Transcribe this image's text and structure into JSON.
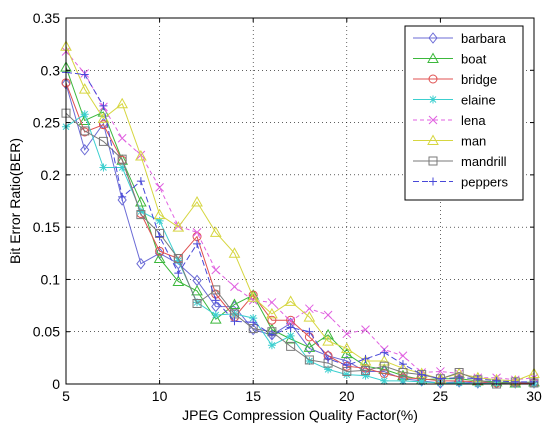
{
  "chart_data": {
    "type": "line",
    "xlabel": "JPEG Compression Quality Factor(%)",
    "ylabel": "Bit Error Ratio(BER)",
    "xlim": [
      5,
      30
    ],
    "ylim": [
      0,
      0.35
    ],
    "x_ticks": [
      "5",
      "10",
      "15",
      "20",
      "25",
      "30"
    ],
    "y_ticks": [
      "0",
      "0.05",
      "0.1",
      "0.15",
      "0.2",
      "0.25",
      "0.3",
      "0.35"
    ],
    "grid": "on",
    "legend_position": "top-right",
    "x": [
      5,
      6,
      7,
      8,
      9,
      10,
      11,
      12,
      13,
      14,
      15,
      16,
      17,
      18,
      19,
      20,
      21,
      22,
      23,
      24,
      25,
      26,
      27,
      28,
      29,
      30
    ],
    "series": [
      {
        "name": "barbara",
        "color": "#6b6bd6",
        "marker": "diamond",
        "values": [
          0.287,
          0.224,
          0.249,
          0.176,
          0.115,
          0.125,
          0.115,
          0.099,
          0.074,
          0.074,
          0.052,
          0.047,
          0.058,
          0.034,
          0.027,
          0.022,
          0.012,
          0.012,
          0.005,
          0.003,
          0.001,
          0.002,
          0.001,
          0.001,
          0.001,
          0.001
        ]
      },
      {
        "name": "boat",
        "color": "#3cb83c",
        "marker": "triangle",
        "values": [
          0.303,
          0.252,
          0.26,
          0.214,
          0.174,
          0.12,
          0.098,
          0.089,
          0.062,
          0.076,
          0.085,
          0.052,
          0.043,
          0.035,
          0.047,
          0.029,
          0.017,
          0.014,
          0.008,
          0.004,
          0.005,
          0.005,
          0.003,
          0.002,
          0.001,
          0.002
        ]
      },
      {
        "name": "bridge",
        "color": "#e05050",
        "marker": "circle",
        "values": [
          0.288,
          0.241,
          0.248,
          0.214,
          0.163,
          0.127,
          0.12,
          0.141,
          0.086,
          0.064,
          0.085,
          0.061,
          0.061,
          0.045,
          0.027,
          0.017,
          0.015,
          0.01,
          0.006,
          0.005,
          0.003,
          0.003,
          0.002,
          0.001,
          0.001,
          0.001
        ]
      },
      {
        "name": "elaine",
        "color": "#3ccfcf",
        "marker": "star",
        "values": [
          0.246,
          0.258,
          0.207,
          0.207,
          0.165,
          0.156,
          0.118,
          0.078,
          0.066,
          0.067,
          0.063,
          0.037,
          0.046,
          0.022,
          0.014,
          0.009,
          0.008,
          0.003,
          0.003,
          0.002,
          0.001,
          0.001,
          0.0,
          0.001,
          0.0,
          0.0
        ]
      },
      {
        "name": "lena",
        "color": "#e060e0",
        "marker": "x",
        "values": [
          0.318,
          0.297,
          0.265,
          0.235,
          0.219,
          0.188,
          0.151,
          0.145,
          0.109,
          0.093,
          0.08,
          0.078,
          0.06,
          0.072,
          0.066,
          0.048,
          0.052,
          0.033,
          0.027,
          0.011,
          0.012,
          0.01,
          0.006,
          0.006,
          0.004,
          0.006
        ]
      },
      {
        "name": "man",
        "color": "#d6d640",
        "marker": "triangle",
        "values": [
          0.323,
          0.282,
          0.254,
          0.268,
          0.218,
          0.162,
          0.15,
          0.174,
          0.145,
          0.125,
          0.083,
          0.067,
          0.079,
          0.064,
          0.041,
          0.034,
          0.022,
          0.022,
          0.015,
          0.01,
          0.005,
          0.01,
          0.006,
          0.004,
          0.003,
          0.01
        ]
      },
      {
        "name": "mandrill",
        "color": "#7a7a7a",
        "marker": "square",
        "values": [
          0.259,
          0.242,
          0.232,
          0.215,
          0.162,
          0.144,
          0.12,
          0.077,
          0.09,
          0.067,
          0.053,
          0.05,
          0.036,
          0.023,
          0.02,
          0.012,
          0.013,
          0.017,
          0.011,
          0.009,
          0.005,
          0.011,
          0.004,
          0.0,
          0.002,
          0.001
        ]
      },
      {
        "name": "peppers",
        "color": "#4848d8",
        "marker": "plus",
        "values": [
          0.298,
          0.296,
          0.266,
          0.179,
          0.194,
          0.141,
          0.106,
          0.134,
          0.08,
          0.06,
          0.059,
          0.047,
          0.054,
          0.05,
          0.024,
          0.018,
          0.024,
          0.03,
          0.019,
          0.009,
          0.005,
          0.006,
          0.005,
          0.003,
          0.002,
          0.002
        ]
      }
    ]
  }
}
